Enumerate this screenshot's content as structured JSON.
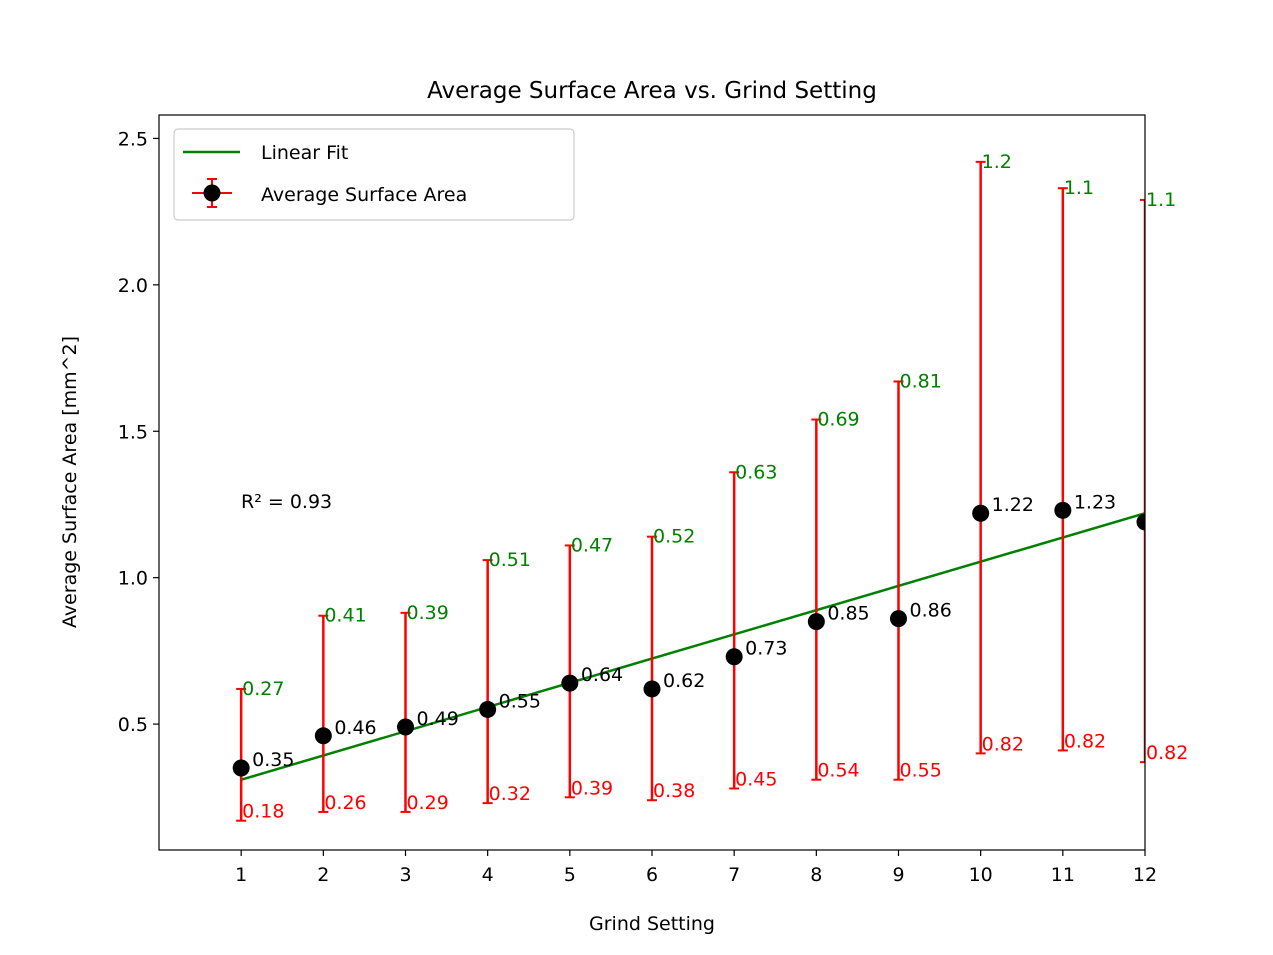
{
  "chart_data": {
    "type": "scatter",
    "title": "Average Surface Area vs. Grind Setting",
    "xlabel": "Grind Setting",
    "ylabel": "Average Surface Area [mm^2]",
    "xlim": [
      0,
      12
    ],
    "ylim": [
      0.07,
      2.58
    ],
    "xticks": [
      "1",
      "2",
      "3",
      "4",
      "5",
      "6",
      "7",
      "8",
      "9",
      "10",
      "11",
      "12"
    ],
    "yticks": [
      "0.5",
      "1.0",
      "1.5",
      "2.0",
      "2.5"
    ],
    "x": [
      1,
      2,
      3,
      4,
      5,
      6,
      7,
      8,
      9,
      10,
      11,
      12
    ],
    "values": [
      0.35,
      0.46,
      0.49,
      0.55,
      0.64,
      0.62,
      0.73,
      0.85,
      0.86,
      1.22,
      1.23,
      1.19
    ],
    "value_labels": [
      "0.35",
      "0.46",
      "0.49",
      "0.55",
      "0.64",
      "0.62",
      "0.73",
      "0.85",
      "0.86",
      "1.22",
      "1.23",
      ""
    ],
    "error_upper": [
      0.27,
      0.41,
      0.39,
      0.51,
      0.47,
      0.52,
      0.63,
      0.69,
      0.81,
      1.2,
      1.1,
      1.1
    ],
    "error_lower": [
      0.18,
      0.26,
      0.29,
      0.32,
      0.39,
      0.38,
      0.45,
      0.54,
      0.55,
      0.82,
      0.82,
      0.82
    ],
    "error_upper_labels": [
      "0.27",
      "0.41",
      "0.39",
      "0.51",
      "0.47",
      "0.52",
      "0.63",
      "0.69",
      "0.81",
      "1.2",
      "1.1",
      "1.1"
    ],
    "error_lower_labels": [
      "0.18",
      "0.26",
      "0.29",
      "0.32",
      "0.39",
      "0.38",
      "0.45",
      "0.54",
      "0.55",
      "0.82",
      "0.82",
      "0.82"
    ],
    "fit": {
      "x": [
        1,
        12
      ],
      "y": [
        0.31,
        1.22
      ]
    },
    "r_squared_label": "R² = 0.93",
    "legend": {
      "placement": "top-left",
      "entries": [
        {
          "label": "Linear Fit",
          "color": "#008000"
        },
        {
          "label": "Average Surface Area",
          "color": "#ff0000"
        }
      ]
    },
    "colors": {
      "points": "#000000",
      "error_bars": "#ff0000",
      "fit_line": "#008000",
      "upper_labels": "#008000",
      "lower_labels": "#ff0000"
    },
    "grid": false
  }
}
